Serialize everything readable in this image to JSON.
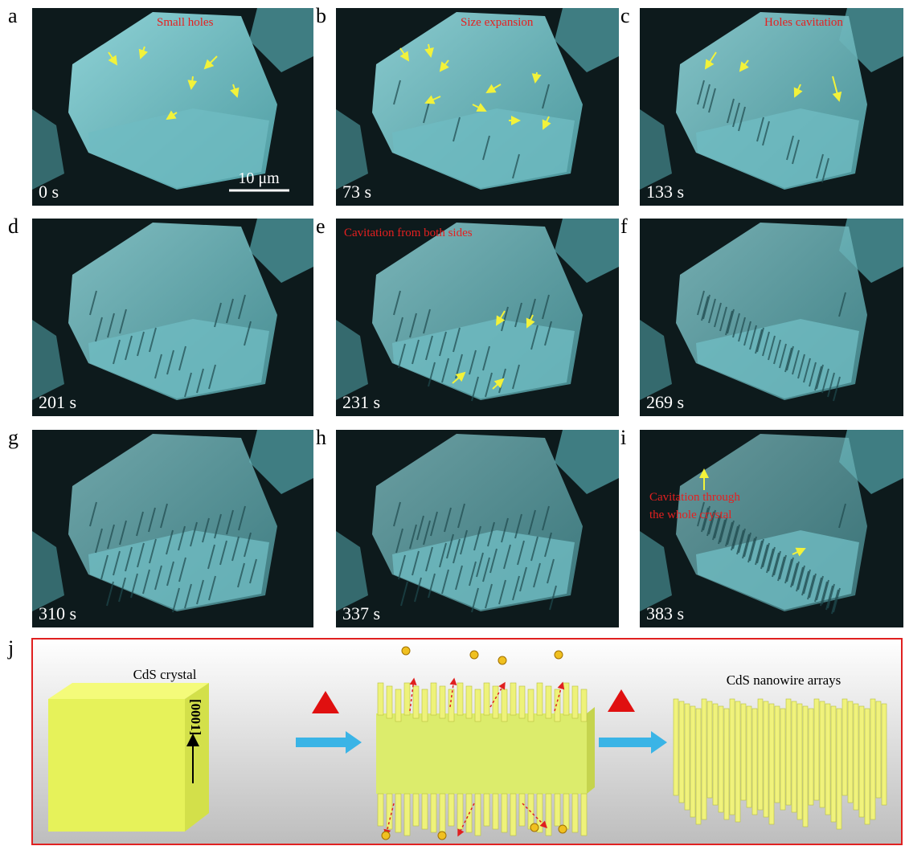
{
  "panels": [
    {
      "label": "a",
      "time": "0 s",
      "annotations": [
        "Small holes"
      ],
      "scale_bar": "10 μm"
    },
    {
      "label": "b",
      "time": "73 s",
      "annotations": [
        "Size expansion"
      ]
    },
    {
      "label": "c",
      "time": "133 s",
      "annotations": [
        "Holes cavitation"
      ]
    },
    {
      "label": "d",
      "time": "201 s",
      "annotations": []
    },
    {
      "label": "e",
      "time": "231 s",
      "annotations": [
        "Cavitation from both sides"
      ]
    },
    {
      "label": "f",
      "time": "269 s",
      "annotations": []
    },
    {
      "label": "g",
      "time": "310 s",
      "annotations": []
    },
    {
      "label": "h",
      "time": "337 s",
      "annotations": []
    },
    {
      "label": "i",
      "time": "383 s",
      "annotations": [
        "Cavitation through",
        "the whole crystal"
      ]
    }
  ],
  "panel_j": {
    "label": "j",
    "crystal_label": "CdS crystal",
    "direction": "[0001]",
    "product_label": "CdS nanowire arrays"
  }
}
